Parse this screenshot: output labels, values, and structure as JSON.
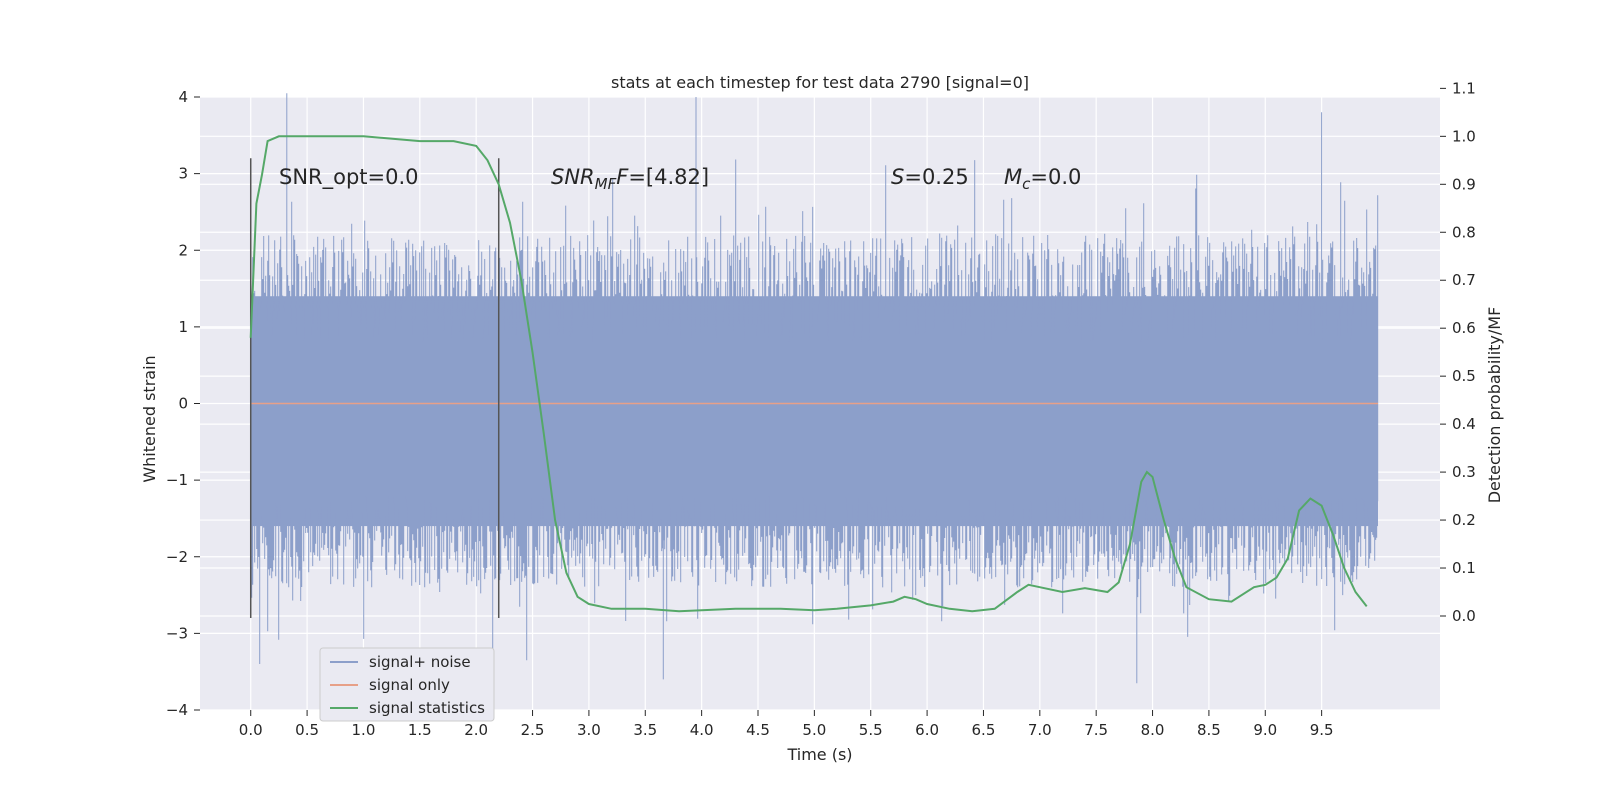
{
  "chart_data": {
    "type": "line",
    "title": "stats at each timestep for test data 2790 [signal=0]",
    "xlabel": "Time (s)",
    "ylabel": "Whitened strain",
    "y2label": "Detection probability/MF",
    "xlim": [
      -0.45,
      10.55
    ],
    "ylim": [
      -4.0,
      4.0
    ],
    "y2lim": [
      -0.196,
      1.082
    ],
    "x_ticks": [
      0.0,
      0.5,
      1.0,
      1.5,
      2.0,
      2.5,
      3.0,
      3.5,
      4.0,
      4.5,
      5.0,
      5.5,
      6.0,
      6.5,
      7.0,
      7.5,
      8.0,
      8.5,
      9.0,
      9.5
    ],
    "x_tick_labels": [
      "0.0",
      "0.5",
      "1.0",
      "1.5",
      "2.0",
      "2.5",
      "3.0",
      "3.5",
      "4.0",
      "4.5",
      "5.0",
      "5.5",
      "6.0",
      "6.5",
      "7.0",
      "7.5",
      "8.0",
      "8.5",
      "9.0",
      "9.5"
    ],
    "y_ticks": [
      -4,
      -3,
      -2,
      -1,
      0,
      1,
      2,
      3,
      4
    ],
    "y_tick_labels": [
      "−4",
      "−3",
      "−2",
      "−1",
      "0",
      "1",
      "2",
      "3",
      "4"
    ],
    "y2_ticks": [
      0.0,
      0.1,
      0.2,
      0.3,
      0.4,
      0.5,
      0.6,
      0.7,
      0.8,
      0.9,
      1.0,
      1.1
    ],
    "y2_tick_labels": [
      "0.0",
      "0.1",
      "0.2",
      "0.3",
      "0.4",
      "0.5",
      "0.6",
      "0.7",
      "0.8",
      "0.9",
      "1.0",
      "1.1"
    ],
    "grid": true,
    "legend_position": "lower-left",
    "series": [
      {
        "name": "signal+ noise",
        "axis": "left",
        "color": "#8c9fca",
        "x_range": [
          0.0,
          10.0
        ],
        "envelope_y": [
          -1.6,
          1.4
        ],
        "max_y": 4.05,
        "min_y": -3.65
      },
      {
        "name": "signal only",
        "axis": "left",
        "color": "#e7a088",
        "x": [
          0.0,
          10.0
        ],
        "y": [
          0.0,
          0.0
        ]
      },
      {
        "name": "signal statistics",
        "axis": "right",
        "color": "#55a868",
        "x": [
          0.0,
          0.05,
          0.1,
          0.15,
          0.25,
          0.5,
          1.0,
          1.5,
          1.6,
          1.8,
          2.0,
          2.1,
          2.2,
          2.3,
          2.4,
          2.5,
          2.6,
          2.7,
          2.8,
          2.9,
          3.0,
          3.2,
          3.5,
          3.8,
          4.0,
          4.3,
          4.7,
          5.0,
          5.2,
          5.5,
          5.7,
          5.8,
          5.9,
          6.0,
          6.2,
          6.4,
          6.6,
          6.8,
          6.9,
          7.0,
          7.2,
          7.4,
          7.6,
          7.7,
          7.8,
          7.9,
          7.95,
          8.0,
          8.1,
          8.2,
          8.3,
          8.5,
          8.7,
          8.9,
          9.0,
          9.1,
          9.2,
          9.3,
          9.4,
          9.5,
          9.6,
          9.7,
          9.8,
          9.9
        ],
        "y": [
          0.58,
          0.86,
          0.92,
          0.99,
          1.0,
          1.0,
          1.0,
          0.99,
          0.99,
          0.99,
          0.98,
          0.95,
          0.9,
          0.82,
          0.7,
          0.55,
          0.38,
          0.2,
          0.09,
          0.04,
          0.025,
          0.015,
          0.015,
          0.01,
          0.012,
          0.015,
          0.015,
          0.012,
          0.015,
          0.022,
          0.03,
          0.04,
          0.035,
          0.025,
          0.015,
          0.01,
          0.015,
          0.05,
          0.065,
          0.06,
          0.05,
          0.058,
          0.05,
          0.07,
          0.15,
          0.28,
          0.3,
          0.29,
          0.2,
          0.12,
          0.06,
          0.035,
          0.03,
          0.06,
          0.065,
          0.08,
          0.12,
          0.22,
          0.245,
          0.23,
          0.17,
          0.1,
          0.05,
          0.02
        ]
      }
    ],
    "vlines": [
      {
        "x": 0.0,
        "y": [
          -2.8,
          3.2
        ]
      },
      {
        "x": 2.2,
        "y": [
          -2.8,
          3.2
        ]
      }
    ]
  },
  "annotations": {
    "snr_opt": "SNR_opt=0.0",
    "snr_mf_prefix": "SNR",
    "snr_mf_sub": "MF",
    "snr_mf_value": "=[4.82]",
    "s_symbol": "S",
    "s_value": "=0.25",
    "mc_symbol": "M",
    "mc_sub": "c",
    "mc_value": "=0.0"
  },
  "legend": {
    "items": [
      {
        "label": "signal+ noise",
        "color": "#8c9fca"
      },
      {
        "label": "signal only",
        "color": "#e7a088"
      },
      {
        "label": "signal statistics",
        "color": "#55a868"
      }
    ]
  },
  "colors": {
    "plot_background": "#eaeaf2",
    "grid": "#ffffff",
    "text": "#262626"
  }
}
